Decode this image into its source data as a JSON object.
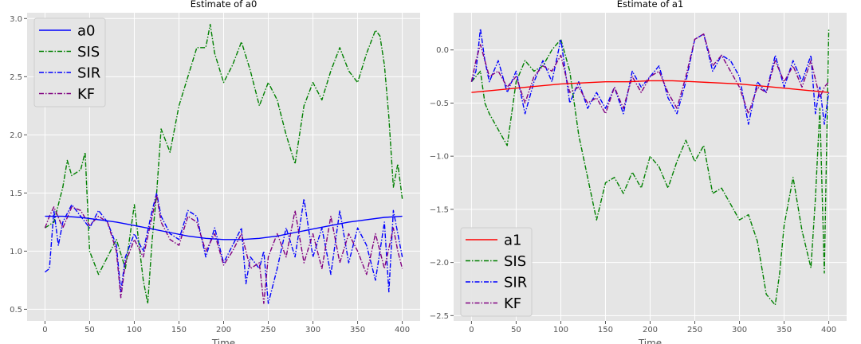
{
  "chart_data": [
    {
      "type": "line",
      "title": "Estimate of a0",
      "xlabel": "Time",
      "ylabel": "",
      "xlim": [
        -20,
        420
      ],
      "ylim": [
        0.4,
        3.05
      ],
      "xticks": [
        0,
        50,
        100,
        150,
        200,
        250,
        300,
        350,
        400
      ],
      "yticks": [
        0.5,
        1.0,
        1.5,
        2.0,
        2.5,
        3.0
      ],
      "ytick_labels": [
        "0.5",
        "1.0",
        "1.5",
        "2.0",
        "2.5",
        "3.0"
      ],
      "grid": true,
      "legend_position": "upper-left",
      "series": [
        {
          "name": "a0",
          "style": "solid",
          "color": "#0000ff",
          "x": [
            0,
            20,
            40,
            60,
            80,
            100,
            120,
            140,
            160,
            180,
            200,
            220,
            240,
            260,
            280,
            300,
            320,
            340,
            360,
            380,
            400
          ],
          "y": [
            1.3,
            1.3,
            1.29,
            1.27,
            1.25,
            1.22,
            1.19,
            1.16,
            1.13,
            1.11,
            1.1,
            1.1,
            1.11,
            1.13,
            1.16,
            1.19,
            1.22,
            1.25,
            1.27,
            1.29,
            1.3
          ]
        },
        {
          "name": "SIS",
          "style": "dashdot",
          "color": "#008000",
          "x": [
            0,
            10,
            20,
            25,
            30,
            40,
            45,
            50,
            60,
            70,
            80,
            90,
            100,
            110,
            115,
            120,
            125,
            130,
            140,
            150,
            160,
            170,
            180,
            185,
            190,
            200,
            210,
            220,
            230,
            240,
            250,
            260,
            270,
            280,
            290,
            300,
            310,
            320,
            330,
            340,
            350,
            360,
            370,
            375,
            380,
            385,
            390,
            395,
            400
          ],
          "y": [
            1.2,
            1.25,
            1.55,
            1.78,
            1.65,
            1.7,
            1.85,
            1.0,
            0.8,
            0.95,
            1.1,
            0.85,
            1.4,
            0.75,
            0.55,
            1.1,
            1.5,
            2.05,
            1.85,
            2.25,
            2.5,
            2.75,
            2.75,
            2.95,
            2.7,
            2.45,
            2.6,
            2.8,
            2.55,
            2.25,
            2.45,
            2.3,
            2.0,
            1.75,
            2.25,
            2.45,
            2.3,
            2.55,
            2.75,
            2.55,
            2.45,
            2.7,
            2.9,
            2.85,
            2.6,
            2.15,
            1.55,
            1.75,
            1.45
          ]
        },
        {
          "name": "SIR",
          "style": "dashdot",
          "color": "#0000ff",
          "x": [
            0,
            5,
            10,
            15,
            20,
            30,
            40,
            50,
            60,
            70,
            80,
            85,
            90,
            100,
            110,
            120,
            125,
            130,
            140,
            150,
            160,
            170,
            180,
            190,
            200,
            210,
            220,
            225,
            230,
            240,
            245,
            250,
            260,
            270,
            280,
            290,
            300,
            310,
            320,
            330,
            340,
            350,
            360,
            370,
            380,
            385,
            390,
            395,
            400
          ],
          "y": [
            0.82,
            0.85,
            1.35,
            1.05,
            1.25,
            1.4,
            1.3,
            1.2,
            1.35,
            1.25,
            1.05,
            0.65,
            0.95,
            1.15,
            1.0,
            1.35,
            1.5,
            1.3,
            1.15,
            1.1,
            1.35,
            1.3,
            0.95,
            1.2,
            0.9,
            1.05,
            1.2,
            0.72,
            0.95,
            0.85,
            1.0,
            0.55,
            0.85,
            1.2,
            0.95,
            1.45,
            0.95,
            1.2,
            0.8,
            1.35,
            0.9,
            1.2,
            1.05,
            0.75,
            1.25,
            0.65,
            1.35,
            1.15,
            0.95
          ]
        },
        {
          "name": "KF",
          "style": "dashdot",
          "color": "#800080",
          "x": [
            0,
            5,
            10,
            20,
            30,
            40,
            50,
            60,
            70,
            80,
            85,
            90,
            100,
            110,
            120,
            125,
            130,
            140,
            150,
            160,
            170,
            180,
            190,
            200,
            210,
            220,
            230,
            240,
            245,
            250,
            260,
            270,
            280,
            290,
            300,
            310,
            320,
            330,
            340,
            350,
            360,
            370,
            380,
            390,
            395,
            400
          ],
          "y": [
            1.2,
            1.3,
            1.38,
            1.2,
            1.38,
            1.35,
            1.22,
            1.3,
            1.25,
            1.0,
            0.6,
            0.9,
            1.1,
            0.95,
            1.3,
            1.48,
            1.25,
            1.1,
            1.05,
            1.3,
            1.25,
            1.0,
            1.15,
            0.88,
            1.0,
            1.15,
            0.85,
            0.9,
            0.55,
            0.95,
            1.15,
            0.95,
            1.35,
            0.9,
            1.15,
            0.85,
            1.3,
            0.9,
            1.15,
            1.0,
            0.8,
            1.15,
            0.85,
            1.2,
            1.0,
            0.85
          ]
        }
      ]
    },
    {
      "type": "line",
      "title": "Estimate of a1",
      "xlabel": "Time",
      "ylabel": "",
      "xlim": [
        -20,
        420
      ],
      "ylim": [
        -2.55,
        0.35
      ],
      "xticks": [
        0,
        50,
        100,
        150,
        200,
        250,
        300,
        350,
        400
      ],
      "yticks": [
        -2.5,
        -2.0,
        -1.5,
        -1.0,
        -0.5,
        0.0
      ],
      "ytick_labels": [
        "−2.5",
        "−2.0",
        "−1.5",
        "−1.0",
        "−0.5",
        "0.0"
      ],
      "grid": true,
      "legend_position": "lower-left",
      "series": [
        {
          "name": "a1",
          "style": "solid",
          "color": "#ff0000",
          "x": [
            0,
            25,
            50,
            75,
            100,
            125,
            150,
            175,
            200,
            225,
            250,
            275,
            300,
            325,
            350,
            375,
            400
          ],
          "y": [
            -0.4,
            -0.38,
            -0.36,
            -0.34,
            -0.32,
            -0.31,
            -0.3,
            -0.3,
            -0.29,
            -0.29,
            -0.3,
            -0.31,
            -0.32,
            -0.34,
            -0.36,
            -0.38,
            -0.4
          ]
        },
        {
          "name": "SIS",
          "style": "dashdot",
          "color": "#008000",
          "x": [
            0,
            10,
            15,
            20,
            30,
            40,
            50,
            60,
            70,
            80,
            90,
            100,
            110,
            115,
            120,
            130,
            140,
            150,
            160,
            170,
            180,
            190,
            200,
            210,
            220,
            230,
            240,
            250,
            260,
            270,
            280,
            290,
            300,
            310,
            320,
            330,
            340,
            345,
            350,
            360,
            370,
            380,
            385,
            390,
            395,
            400
          ],
          "y": [
            -0.3,
            -0.2,
            -0.5,
            -0.6,
            -0.75,
            -0.9,
            -0.3,
            -0.1,
            -0.2,
            -0.15,
            0.0,
            0.1,
            -0.2,
            -0.5,
            -0.8,
            -1.2,
            -1.6,
            -1.25,
            -1.2,
            -1.35,
            -1.15,
            -1.3,
            -1.0,
            -1.1,
            -1.3,
            -1.05,
            -0.85,
            -1.05,
            -0.9,
            -1.35,
            -1.3,
            -1.45,
            -1.6,
            -1.55,
            -1.8,
            -2.3,
            -2.4,
            -2.1,
            -1.65,
            -1.2,
            -1.7,
            -2.05,
            -1.4,
            -0.55,
            -2.1,
            0.2
          ]
        },
        {
          "name": "SIR",
          "style": "dashdot",
          "color": "#0000ff",
          "x": [
            0,
            5,
            10,
            15,
            20,
            30,
            40,
            50,
            60,
            70,
            80,
            90,
            100,
            110,
            120,
            130,
            140,
            150,
            160,
            170,
            180,
            190,
            200,
            210,
            220,
            230,
            240,
            250,
            260,
            270,
            280,
            290,
            300,
            310,
            320,
            330,
            340,
            350,
            360,
            370,
            380,
            385,
            390,
            395,
            400
          ],
          "y": [
            -0.3,
            -0.2,
            0.2,
            -0.1,
            -0.3,
            -0.1,
            -0.4,
            -0.2,
            -0.6,
            -0.3,
            -0.1,
            -0.3,
            0.1,
            -0.5,
            -0.3,
            -0.55,
            -0.4,
            -0.55,
            -0.35,
            -0.6,
            -0.2,
            -0.35,
            -0.25,
            -0.15,
            -0.45,
            -0.6,
            -0.3,
            0.1,
            0.15,
            -0.2,
            -0.05,
            -0.1,
            -0.25,
            -0.7,
            -0.3,
            -0.4,
            -0.05,
            -0.35,
            -0.1,
            -0.3,
            -0.05,
            -0.6,
            -0.35,
            -0.7,
            -0.4
          ]
        },
        {
          "name": "KF",
          "style": "dashdot",
          "color": "#800080",
          "x": [
            0,
            5,
            10,
            20,
            30,
            40,
            50,
            60,
            70,
            80,
            90,
            100,
            110,
            120,
            130,
            140,
            150,
            160,
            170,
            180,
            190,
            200,
            210,
            220,
            230,
            240,
            250,
            260,
            270,
            280,
            290,
            300,
            310,
            320,
            330,
            340,
            350,
            360,
            370,
            380,
            390,
            395,
            400
          ],
          "y": [
            -0.3,
            -0.1,
            0.05,
            -0.25,
            -0.2,
            -0.35,
            -0.25,
            -0.5,
            -0.25,
            -0.15,
            -0.2,
            -0.05,
            -0.4,
            -0.35,
            -0.5,
            -0.45,
            -0.6,
            -0.35,
            -0.55,
            -0.25,
            -0.4,
            -0.25,
            -0.2,
            -0.4,
            -0.55,
            -0.25,
            0.1,
            0.15,
            -0.15,
            -0.05,
            -0.2,
            -0.35,
            -0.6,
            -0.35,
            -0.4,
            -0.1,
            -0.3,
            -0.15,
            -0.35,
            -0.1,
            -0.45,
            -0.35,
            -0.3
          ]
        }
      ]
    }
  ]
}
